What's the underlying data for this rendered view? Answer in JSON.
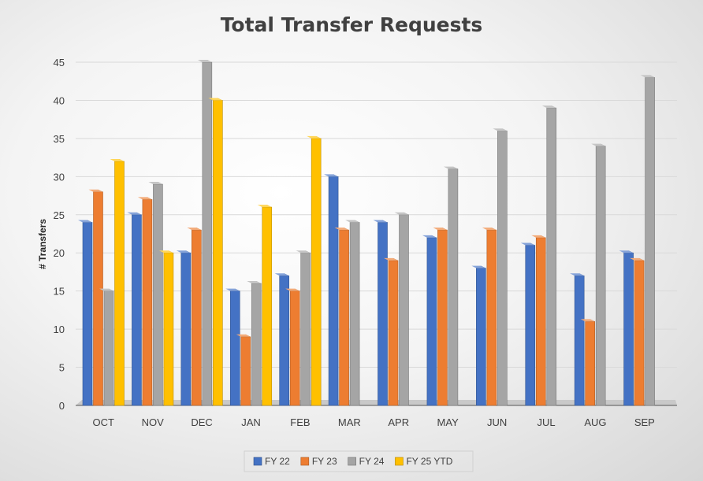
{
  "chart_data": {
    "type": "bar",
    "title": "Total Transfer Requests",
    "xlabel": "",
    "ylabel": "# Transfers",
    "ylim": [
      0,
      45
    ],
    "yticks": [
      0,
      5,
      10,
      15,
      20,
      25,
      30,
      35,
      40,
      45
    ],
    "grid": true,
    "legend_position": "bottom",
    "categories": [
      "OCT",
      "NOV",
      "DEC",
      "JAN",
      "FEB",
      "MAR",
      "APR",
      "MAY",
      "JUN",
      "JUL",
      "AUG",
      "SEP"
    ],
    "series": [
      {
        "name": "FY 22",
        "color": "#4472C4",
        "values": [
          24,
          25,
          20,
          15,
          17,
          30,
          24,
          22,
          18,
          21,
          17,
          20
        ]
      },
      {
        "name": "FY 23",
        "color": "#ED7D31",
        "values": [
          28,
          27,
          23,
          9,
          15,
          23,
          19,
          23,
          23,
          22,
          11,
          19
        ]
      },
      {
        "name": "FY 24",
        "color": "#A5A5A5",
        "values": [
          15,
          29,
          45,
          16,
          20,
          24,
          25,
          31,
          36,
          39,
          34,
          43
        ]
      },
      {
        "name": "FY 25 YTD",
        "color": "#FFC000",
        "values": [
          32,
          20,
          40,
          26,
          35,
          null,
          null,
          null,
          null,
          null,
          null,
          null
        ]
      }
    ]
  }
}
